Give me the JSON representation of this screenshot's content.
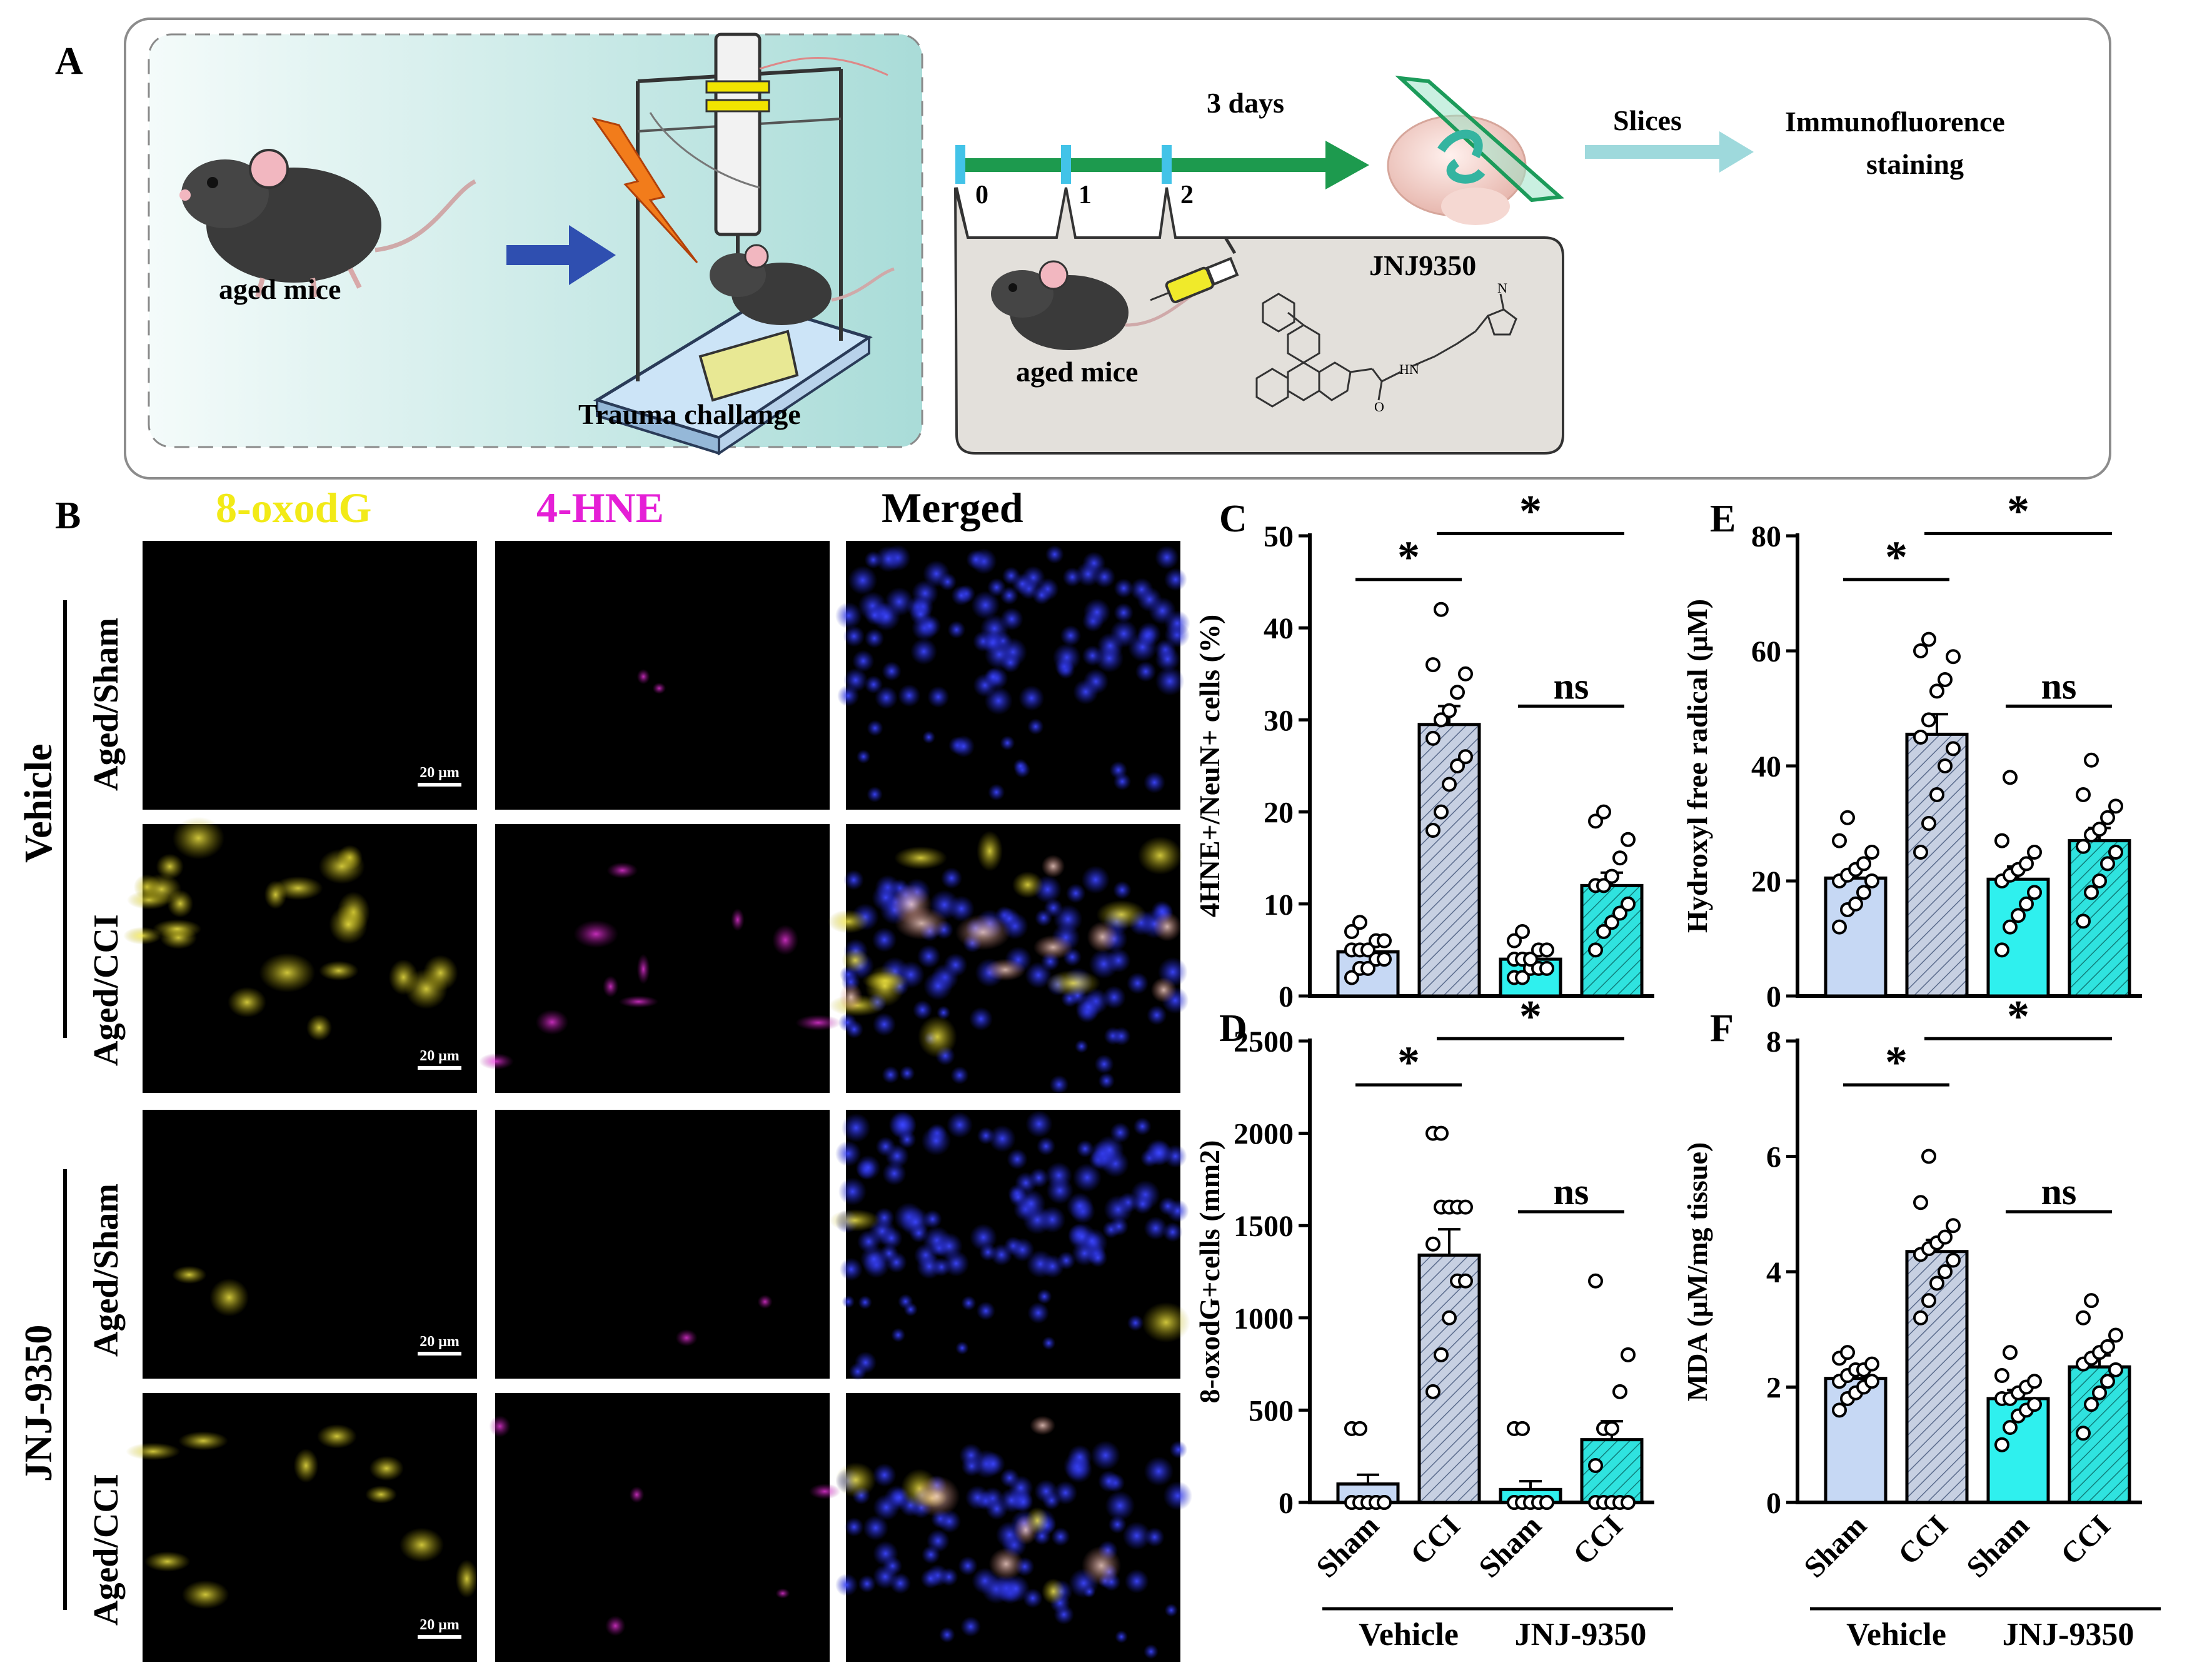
{
  "panels": {
    "A": "A",
    "B": "B",
    "C": "C",
    "D": "D",
    "E": "E",
    "F": "F"
  },
  "schematic": {
    "aged_mice_left": "aged mice",
    "trauma": "Trauma challange",
    "days": "3 days",
    "day_ticks": [
      "0",
      "1",
      "2"
    ],
    "aged_mice_treat": "aged mice",
    "drug": "JNJ9350",
    "slices": "Slices",
    "stain_line1": "Immunofluorence",
    "stain_line2": "staining"
  },
  "micrographs": {
    "columns": [
      "8-oxodG",
      "4-HNE",
      "Merged"
    ],
    "column_colors": [
      "#f2ea17",
      "#e51fd6",
      "#000000"
    ],
    "group_labels": [
      "Vehicle",
      "JNJ-9350"
    ],
    "row_labels": [
      "Aged/Sham",
      "Aged/CCI",
      "Aged/Sham",
      "Aged/CCI"
    ],
    "scale_bar": "20 μm"
  },
  "chart_data": [
    {
      "panel": "C",
      "type": "bar",
      "ylabel": "4HNE+/NeuN+ cells (%)",
      "ylim": [
        0,
        50
      ],
      "yticks": [
        0,
        10,
        20,
        30,
        40,
        50
      ],
      "categories": [
        "Sham",
        "CCI",
        "Sham",
        "CCI"
      ],
      "groups": [
        "Vehicle",
        "JNJ-9350"
      ],
      "values": [
        4.8,
        29.5,
        4.0,
        12.0
      ],
      "sem": [
        0.6,
        2.0,
        0.6,
        1.4
      ],
      "points": [
        [
          2,
          3,
          3,
          4,
          4,
          5,
          5,
          5,
          6,
          6,
          7,
          8
        ],
        [
          18,
          20,
          23,
          25,
          26,
          28,
          30,
          31,
          33,
          35,
          36,
          42
        ],
        [
          2,
          2,
          3,
          3,
          3,
          4,
          4,
          4,
          5,
          5,
          6,
          7
        ],
        [
          5,
          7,
          8,
          9,
          10,
          12,
          12,
          13,
          15,
          17,
          19,
          20
        ]
      ],
      "significance": [
        {
          "a": 0,
          "b": 1,
          "label": "*"
        },
        {
          "a": 1,
          "b": 3,
          "label": "*"
        },
        {
          "a": 2,
          "b": 3,
          "label": "ns"
        }
      ]
    },
    {
      "panel": "D",
      "type": "bar",
      "ylabel": "8-oxodG+cells (mm2)",
      "ylim": [
        0,
        2500
      ],
      "yticks": [
        0,
        500,
        1000,
        1500,
        2000,
        2500
      ],
      "categories": [
        "Sham",
        "CCI",
        "Sham",
        "CCI"
      ],
      "groups": [
        "Vehicle",
        "JNJ-9350"
      ],
      "values": [
        100,
        1340,
        70,
        340
      ],
      "sem": [
        50,
        140,
        45,
        100
      ],
      "points": [
        [
          0,
          0,
          0,
          0,
          0,
          0,
          0,
          0,
          0,
          0,
          400,
          400
        ],
        [
          600,
          800,
          1000,
          1200,
          1200,
          1400,
          1600,
          1600,
          1600,
          1600,
          2000,
          2000
        ],
        [
          0,
          0,
          0,
          0,
          0,
          0,
          0,
          0,
          0,
          0,
          400,
          400
        ],
        [
          0,
          0,
          0,
          0,
          0,
          200,
          400,
          400,
          600,
          800,
          1200
        ]
      ],
      "significance": [
        {
          "a": 0,
          "b": 1,
          "label": "*"
        },
        {
          "a": 1,
          "b": 3,
          "label": "*"
        },
        {
          "a": 2,
          "b": 3,
          "label": "ns"
        }
      ]
    },
    {
      "panel": "E",
      "type": "bar",
      "ylabel": "Hydroxyl free radical (μM)",
      "ylim": [
        0,
        80
      ],
      "yticks": [
        0,
        20,
        40,
        60,
        80
      ],
      "categories": [
        "Sham",
        "CCI",
        "Sham",
        "CCI"
      ],
      "groups": [
        "Vehicle",
        "JNJ-9350"
      ],
      "values": [
        20.5,
        45.5,
        20.3,
        27.0
      ],
      "sem": [
        1.5,
        3.5,
        2.2,
        2.2
      ],
      "points": [
        [
          12,
          15,
          16,
          18,
          20,
          20,
          21,
          22,
          23,
          25,
          27,
          31
        ],
        [
          25,
          30,
          35,
          40,
          43,
          45,
          48,
          53,
          55,
          59,
          60,
          62
        ],
        [
          8,
          12,
          14,
          16,
          18,
          20,
          21,
          22,
          23,
          25,
          27,
          38
        ],
        [
          13,
          18,
          20,
          23,
          25,
          26,
          28,
          29,
          31,
          33,
          35,
          41
        ]
      ],
      "significance": [
        {
          "a": 0,
          "b": 1,
          "label": "*"
        },
        {
          "a": 1,
          "b": 3,
          "label": "*"
        },
        {
          "a": 2,
          "b": 3,
          "label": "ns"
        }
      ]
    },
    {
      "panel": "F",
      "type": "bar",
      "ylabel": "MDA (μM/mg tissue)",
      "ylim": [
        0,
        8
      ],
      "yticks": [
        0,
        2,
        4,
        6,
        8
      ],
      "categories": [
        "Sham",
        "CCI",
        "Sham",
        "CCI"
      ],
      "groups": [
        "Vehicle",
        "JNJ-9350"
      ],
      "values": [
        2.15,
        4.35,
        1.8,
        2.35
      ],
      "sem": [
        0.12,
        0.2,
        0.15,
        0.2
      ],
      "points": [
        [
          1.6,
          1.8,
          1.9,
          2.0,
          2.1,
          2.1,
          2.2,
          2.3,
          2.3,
          2.4,
          2.5,
          2.6
        ],
        [
          3.2,
          3.5,
          3.8,
          4.0,
          4.2,
          4.3,
          4.4,
          4.5,
          4.6,
          4.8,
          5.2,
          6.0
        ],
        [
          1.0,
          1.3,
          1.5,
          1.6,
          1.7,
          1.8,
          1.8,
          1.9,
          2.0,
          2.1,
          2.2,
          2.6
        ],
        [
          1.2,
          1.7,
          1.9,
          2.1,
          2.3,
          2.4,
          2.5,
          2.6,
          2.7,
          2.9,
          3.2,
          3.5
        ]
      ],
      "significance": [
        {
          "a": 0,
          "b": 1,
          "label": "*"
        },
        {
          "a": 1,
          "b": 3,
          "label": "*"
        },
        {
          "a": 2,
          "b": 3,
          "label": "ns"
        }
      ]
    }
  ],
  "colors": {
    "sham_fill": "#c5d8f5",
    "cci_fill": "#c0cbe0",
    "jnj_sham_fill": "#2ff0ee",
    "jnj_cci_fill": "#2ad8d4"
  }
}
